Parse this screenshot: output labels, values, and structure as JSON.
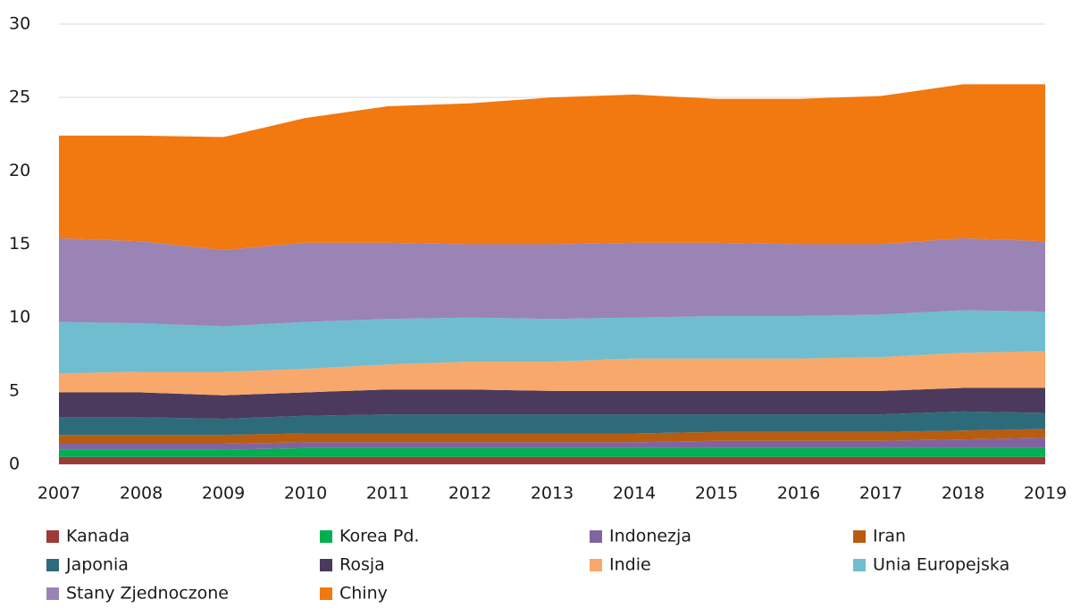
{
  "chart_data": {
    "type": "stacked_area",
    "x": [
      2007,
      2008,
      2009,
      2010,
      2011,
      2012,
      2013,
      2014,
      2015,
      2016,
      2017,
      2018,
      2019
    ],
    "xlim": [
      2007,
      2019
    ],
    "xticks": [
      2007,
      2008,
      2009,
      2010,
      2011,
      2012,
      2013,
      2014,
      2015,
      2016,
      2017,
      2018,
      2019
    ],
    "ylim": [
      0,
      30
    ],
    "yticks": [
      0,
      5,
      10,
      15,
      20,
      25,
      30
    ],
    "grid": true,
    "series": [
      {
        "name": "Kanada",
        "color": "#9e3a38",
        "values": [
          0.5,
          0.5,
          0.5,
          0.5,
          0.5,
          0.5,
          0.5,
          0.5,
          0.5,
          0.5,
          0.5,
          0.5,
          0.5
        ]
      },
      {
        "name": "Korea Pd.",
        "color": "#00b050",
        "values": [
          0.5,
          0.5,
          0.5,
          0.6,
          0.6,
          0.6,
          0.6,
          0.6,
          0.6,
          0.6,
          0.6,
          0.6,
          0.6
        ]
      },
      {
        "name": "Indonezja",
        "color": "#8064a2",
        "values": [
          0.4,
          0.4,
          0.4,
          0.4,
          0.4,
          0.4,
          0.4,
          0.4,
          0.5,
          0.5,
          0.5,
          0.6,
          0.7
        ]
      },
      {
        "name": "Iran",
        "color": "#b85c0f",
        "values": [
          0.6,
          0.6,
          0.6,
          0.6,
          0.6,
          0.6,
          0.6,
          0.6,
          0.6,
          0.6,
          0.6,
          0.6,
          0.6
        ]
      },
      {
        "name": "Japonia",
        "color": "#2e6b7a",
        "values": [
          1.2,
          1.2,
          1.1,
          1.2,
          1.3,
          1.3,
          1.3,
          1.3,
          1.2,
          1.2,
          1.2,
          1.3,
          1.1
        ]
      },
      {
        "name": "Rosja",
        "color": "#4b3a5e",
        "values": [
          1.7,
          1.7,
          1.6,
          1.6,
          1.7,
          1.7,
          1.6,
          1.6,
          1.6,
          1.6,
          1.6,
          1.6,
          1.7
        ]
      },
      {
        "name": "Indie",
        "color": "#f7a86a",
        "values": [
          1.3,
          1.4,
          1.6,
          1.6,
          1.7,
          1.9,
          2.0,
          2.2,
          2.2,
          2.2,
          2.3,
          2.4,
          2.5
        ]
      },
      {
        "name": "Unia Europejska",
        "color": "#70bdd0",
        "values": [
          3.5,
          3.3,
          3.1,
          3.2,
          3.1,
          3.0,
          2.9,
          2.8,
          2.9,
          2.9,
          2.9,
          2.9,
          2.7
        ]
      },
      {
        "name": "Stany Zjednoczone",
        "color": "#9a84b6",
        "values": [
          5.7,
          5.6,
          5.2,
          5.4,
          5.2,
          5.0,
          5.1,
          5.1,
          5.0,
          4.9,
          4.8,
          4.9,
          4.8
        ]
      },
      {
        "name": "Chiny",
        "color": "#f27810",
        "values": [
          7.0,
          7.2,
          7.7,
          8.5,
          9.3,
          9.6,
          10.0,
          10.1,
          9.8,
          9.9,
          10.1,
          10.5,
          10.7
        ]
      }
    ]
  }
}
